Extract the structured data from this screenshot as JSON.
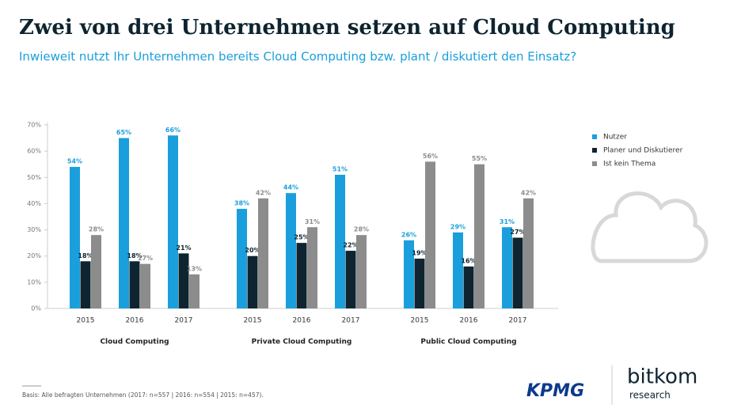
{
  "chart_data": {
    "type": "bar",
    "title": "Zwei von drei Unternehmen setzen auf Cloud Computing",
    "subtitle": "Inwieweit nutzt Ihr Unternehmen bereits Cloud Computing bzw. plant / diskutiert den Einsatz?",
    "categories": [
      "2015",
      "2016",
      "2017",
      "2015",
      "2016",
      "2017",
      "2015",
      "2016",
      "2017"
    ],
    "groups": [
      "Cloud Computing",
      "Private Cloud Computing",
      "Public Cloud Computing"
    ],
    "series": [
      {
        "name": "Nutzer",
        "color": "#1a9fdc",
        "values": [
          54,
          65,
          66,
          38,
          44,
          51,
          26,
          29,
          31
        ],
        "value_labels": [
          "54%",
          "65%",
          "66%",
          "38%",
          "44%",
          "51%",
          "26%",
          "29%",
          "31%"
        ]
      },
      {
        "name": "Planer und Diskutierer",
        "color": "#0e2430",
        "values": [
          18,
          18,
          21,
          20,
          25,
          22,
          19,
          16,
          27
        ],
        "value_labels": [
          "18%",
          "18%",
          "21%",
          "20%",
          "25%",
          "22%",
          "19%",
          "16%",
          "27%"
        ]
      },
      {
        "name": "Ist kein Thema",
        "color": "#8c8c8c",
        "values": [
          28,
          17,
          13,
          42,
          31,
          28,
          56,
          55,
          42
        ],
        "value_labels": [
          "28%",
          "17%",
          "13%",
          "42%",
          "31%",
          "28%",
          "56%",
          "55%",
          "42%"
        ]
      }
    ],
    "ylim": [
      0,
      70
    ],
    "yticks": [
      {
        "value": 0,
        "label": "0%"
      },
      {
        "value": 10,
        "label": "10%"
      },
      {
        "value": 20,
        "label": "20%"
      },
      {
        "value": 30,
        "label": "30%"
      },
      {
        "value": 40,
        "label": "40%"
      },
      {
        "value": 50,
        "label": "50%"
      },
      {
        "value": 60,
        "label": "60%"
      },
      {
        "value": 70,
        "label": "70%"
      }
    ],
    "legend": "right"
  },
  "footnote": "Basis: Alle befragten Unternehmen (2017: n=557 | 2016: n=554 | 2015: n=457).",
  "logos": {
    "kpmg": "KPMG",
    "bitkom": "bitkom",
    "research": "research"
  }
}
